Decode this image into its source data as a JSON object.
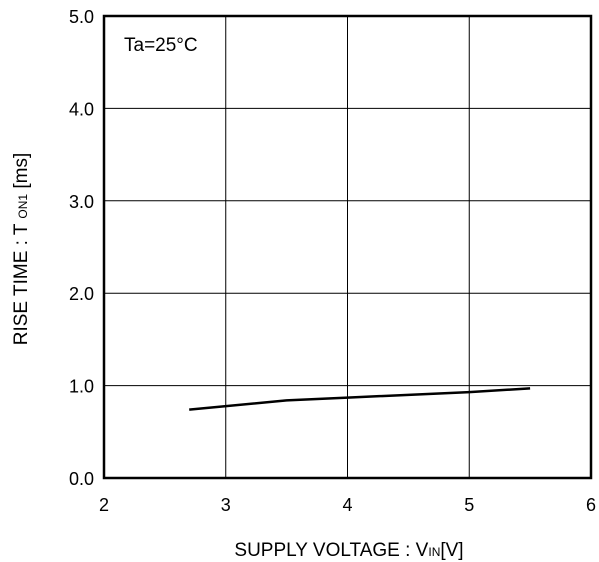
{
  "chart_data": {
    "type": "line",
    "title": "",
    "annotation": "Ta=25°C",
    "xlabel": {
      "main": "SUPPLY VOLTAGE : V",
      "subscript": "IN",
      "suffix": "[V]"
    },
    "ylabel": {
      "main": "RISE TIME : T ",
      "subscript": "ON1",
      "suffix": " [ms]"
    },
    "xlim": [
      2,
      6
    ],
    "ylim": [
      0.0,
      5.0
    ],
    "x_ticks": [
      "2",
      "3",
      "4",
      "5",
      "6"
    ],
    "y_ticks": [
      "0.0",
      "1.0",
      "2.0",
      "3.0",
      "4.0",
      "5.0"
    ],
    "grid": true,
    "legend": "none",
    "series": [
      {
        "color": "#000000",
        "points": [
          {
            "x": 2.7,
            "y": 0.74
          },
          {
            "x": 3.5,
            "y": 0.84
          },
          {
            "x": 4.0,
            "y": 0.87
          },
          {
            "x": 5.0,
            "y": 0.93
          },
          {
            "x": 5.5,
            "y": 0.97
          }
        ]
      }
    ]
  }
}
